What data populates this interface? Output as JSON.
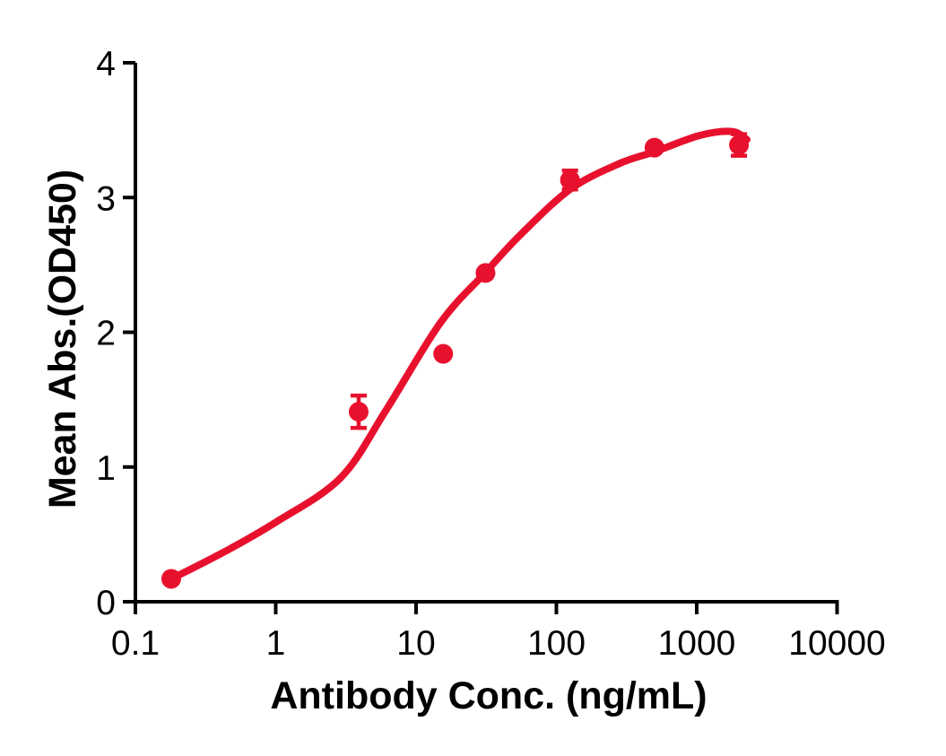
{
  "figure": {
    "background": "#ffffff"
  },
  "chart_data": {
    "type": "scatter",
    "title": "",
    "xlabel": "Antibody Conc. (ng/mL)",
    "ylabel": "Mean Abs.(OD450)",
    "x_scale": "log10",
    "xlim": [
      0.1,
      10000
    ],
    "ylim": [
      0,
      4
    ],
    "grid": false,
    "legend_position": "none",
    "x_ticks": [
      {
        "value": 0.1,
        "label": "0.1"
      },
      {
        "value": 1,
        "label": "1"
      },
      {
        "value": 10,
        "label": "10"
      },
      {
        "value": 100,
        "label": "100"
      },
      {
        "value": 1000,
        "label": "1000"
      },
      {
        "value": 10000,
        "label": "10000"
      }
    ],
    "y_ticks": [
      {
        "value": 0,
        "label": "0"
      },
      {
        "value": 1,
        "label": "1"
      },
      {
        "value": 2,
        "label": "2"
      },
      {
        "value": 3,
        "label": "3"
      },
      {
        "value": 4,
        "label": "4"
      }
    ],
    "colors": {
      "series": "#E8112D",
      "axis": "#000000",
      "text": "#000000"
    },
    "series": [
      {
        "name": "Mean Abs.(OD450)",
        "marker": "circle",
        "points": [
          {
            "x": 0.18,
            "y": 0.17,
            "err": 0
          },
          {
            "x": 3.9,
            "y": 1.41,
            "err": 0.12
          },
          {
            "x": 15.6,
            "y": 1.84,
            "err": 0
          },
          {
            "x": 31.25,
            "y": 2.44,
            "err": 0
          },
          {
            "x": 125,
            "y": 3.13,
            "err": 0.07
          },
          {
            "x": 500,
            "y": 3.37,
            "err": 0
          },
          {
            "x": 2000,
            "y": 3.39,
            "err": 0.08
          }
        ],
        "fit_curve_points": [
          [
            0.177,
            0.166
          ],
          [
            0.43,
            0.37
          ],
          [
            1.0,
            0.59
          ],
          [
            2.9,
            0.92
          ],
          [
            6.1,
            1.42
          ],
          [
            14.9,
            2.07
          ],
          [
            31,
            2.44
          ],
          [
            55,
            2.72
          ],
          [
            125,
            3.06
          ],
          [
            278,
            3.25
          ],
          [
            501,
            3.34
          ],
          [
            1045,
            3.46
          ],
          [
            1780,
            3.49
          ],
          [
            2280,
            3.43
          ]
        ]
      }
    ]
  }
}
